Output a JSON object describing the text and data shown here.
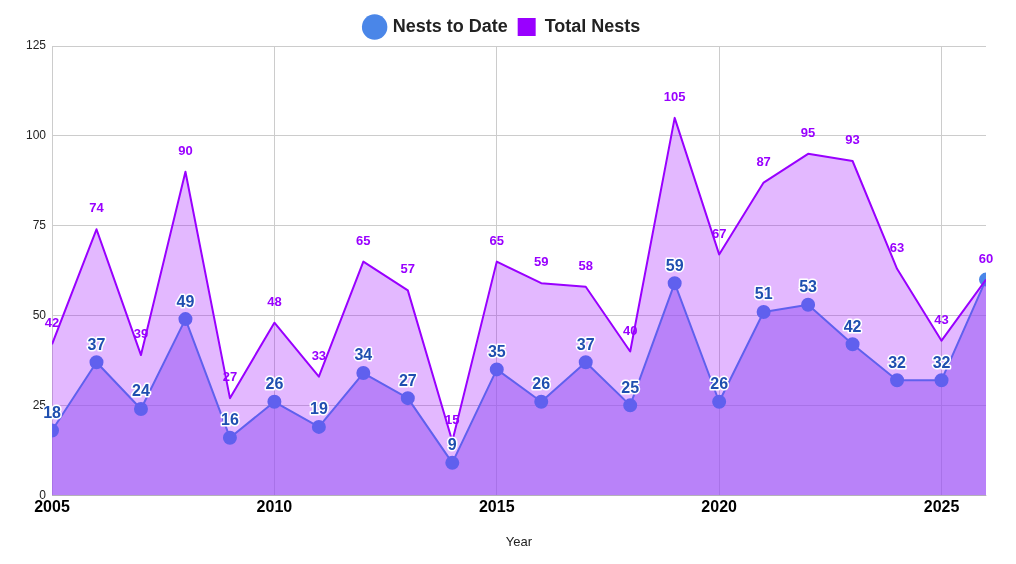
{
  "chart_data": {
    "type": "area",
    "xlabel": "Year",
    "x": [
      2005,
      2006,
      2007,
      2008,
      2009,
      2010,
      2011,
      2012,
      2013,
      2014,
      2015,
      2016,
      2017,
      2018,
      2019,
      2020,
      2021,
      2022,
      2023,
      2024,
      2025,
      2026
    ],
    "series": [
      {
        "name": "Nests to Date",
        "color": "#4a86e8",
        "marker": "circle",
        "values": [
          18,
          37,
          24,
          49,
          16,
          26,
          19,
          34,
          27,
          9,
          35,
          26,
          37,
          25,
          59,
          26,
          51,
          53,
          42,
          32,
          32,
          60
        ],
        "value_labels": [
          "18",
          "37",
          "24",
          "49",
          "16",
          "26",
          "19",
          "34",
          "27",
          "9",
          "35",
          "26",
          "37",
          "25",
          "59",
          "26",
          "51",
          "53",
          "42",
          "32",
          "32",
          null
        ]
      },
      {
        "name": "Total Nests",
        "color": "#9900ff",
        "marker": "none",
        "values": [
          42,
          74,
          39,
          90,
          27,
          48,
          33,
          65,
          57,
          15,
          65,
          59,
          58,
          40,
          105,
          67,
          87,
          95,
          93,
          63,
          43,
          60
        ],
        "value_labels": [
          "42",
          "74",
          "39",
          "90",
          "27",
          "48",
          "33",
          "65",
          "57",
          "15",
          "65",
          "59",
          "58",
          "40",
          "105",
          "67",
          "87",
          "95",
          "93",
          "63",
          "43",
          "60"
        ]
      }
    ],
    "xlim": [
      2005,
      2026
    ],
    "xticks": [
      2005,
      2010,
      2015,
      2020,
      2025
    ],
    "ylim": [
      0,
      125
    ],
    "yticks": [
      0,
      25,
      50,
      75,
      100,
      125
    ],
    "grid": true,
    "legend": "top"
  }
}
